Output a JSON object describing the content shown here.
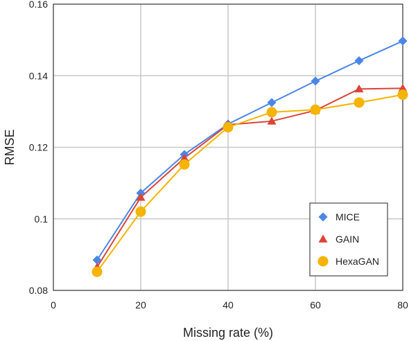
{
  "chart_data": {
    "type": "line",
    "title": "",
    "xlabel": "Missing rate (%)",
    "ylabel": "RMSE",
    "xlim": [
      0,
      80
    ],
    "ylim": [
      0.08,
      0.16
    ],
    "xticks": [
      0,
      20,
      40,
      60,
      80
    ],
    "yticks": [
      0.08,
      0.1,
      0.12,
      0.14,
      0.16
    ],
    "xtick_labels": [
      "0",
      "20",
      "40",
      "60",
      "80"
    ],
    "ytick_labels": [
      "0.08",
      "0.1",
      "0.12",
      "0.14",
      "0.16"
    ],
    "grid": true,
    "legend_position": "bottom-right",
    "x": [
      10,
      20,
      30,
      40,
      50,
      60,
      70,
      80
    ],
    "series": [
      {
        "name": "MICE",
        "color": "#4a86e8",
        "marker": "diamond",
        "values": [
          0.0885,
          0.1072,
          0.118,
          0.1265,
          0.1325,
          0.1385,
          0.1442,
          0.1497
        ]
      },
      {
        "name": "GAIN",
        "color": "#db4437",
        "marker": "triangle",
        "values": [
          0.0865,
          0.106,
          0.117,
          0.1263,
          0.1273,
          0.1303,
          0.1363,
          0.1365
        ]
      },
      {
        "name": "HexaGAN",
        "color": "#f4b400",
        "marker": "circle",
        "values": [
          0.0852,
          0.102,
          0.1152,
          0.1256,
          0.1298,
          0.1305,
          0.1325,
          0.1347
        ]
      }
    ]
  }
}
